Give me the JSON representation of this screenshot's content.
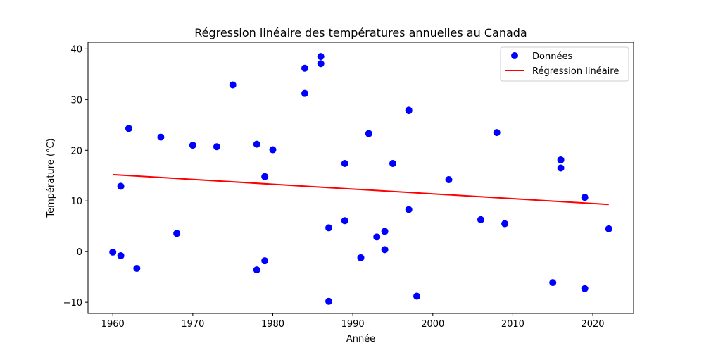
{
  "chart_data": {
    "type": "scatter",
    "title": "Régression linéaire des températures annuelles au Canada",
    "xlabel": "Année",
    "ylabel": "Température (°C)",
    "xlim": [
      1956.9,
      2025.1
    ],
    "ylim": [
      -12.2,
      41.3
    ],
    "xticks": [
      1960,
      1970,
      1980,
      1990,
      2000,
      2010,
      2020
    ],
    "yticks": [
      -10,
      0,
      10,
      20,
      30,
      40
    ],
    "grid": false,
    "legend_position": "top-right",
    "series": [
      {
        "name": "Données",
        "kind": "scatter",
        "color": "#0000ff",
        "points": [
          [
            1960,
            -0.1
          ],
          [
            1961,
            12.9
          ],
          [
            1961,
            -0.8
          ],
          [
            1962,
            24.3
          ],
          [
            1963,
            -3.3
          ],
          [
            1966,
            22.6
          ],
          [
            1968,
            3.6
          ],
          [
            1970,
            21.0
          ],
          [
            1973,
            20.7
          ],
          [
            1975,
            32.9
          ],
          [
            1978,
            21.2
          ],
          [
            1978,
            -3.6
          ],
          [
            1979,
            14.8
          ],
          [
            1979,
            -1.8
          ],
          [
            1980,
            20.1
          ],
          [
            1984,
            36.2
          ],
          [
            1984,
            31.2
          ],
          [
            1986,
            38.5
          ],
          [
            1986,
            37.1
          ],
          [
            1987,
            4.7
          ],
          [
            1987,
            -9.8
          ],
          [
            1989,
            17.4
          ],
          [
            1989,
            6.1
          ],
          [
            1991,
            -1.2
          ],
          [
            1992,
            23.3
          ],
          [
            1993,
            2.9
          ],
          [
            1994,
            4.0
          ],
          [
            1994,
            0.4
          ],
          [
            1995,
            17.4
          ],
          [
            1997,
            27.9
          ],
          [
            1997,
            27.8
          ],
          [
            1997,
            8.3
          ],
          [
            1998,
            -8.8
          ],
          [
            2002,
            14.2
          ],
          [
            2006,
            6.3
          ],
          [
            2008,
            23.5
          ],
          [
            2009,
            5.5
          ],
          [
            2015,
            -6.1
          ],
          [
            2016,
            18.1
          ],
          [
            2016,
            16.5
          ],
          [
            2019,
            10.7
          ],
          [
            2019,
            -7.3
          ],
          [
            2022,
            4.5
          ]
        ]
      },
      {
        "name": "Régression linéaire",
        "kind": "line",
        "color": "#ff0000",
        "x": [
          1960,
          2022
        ],
        "y": [
          15.2,
          9.3
        ]
      }
    ]
  }
}
